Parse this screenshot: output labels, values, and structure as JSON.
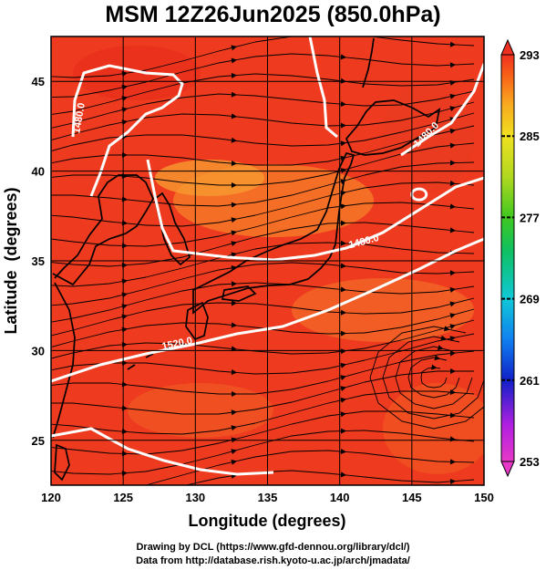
{
  "title": "MSM 12Z26Jun2025 (850.0hPa)",
  "x_axis": {
    "label": "Longitude (degrees)",
    "range": [
      120,
      150
    ],
    "ticks": [
      "120",
      "125",
      "130",
      "135",
      "140",
      "145",
      "150"
    ]
  },
  "y_axis": {
    "label": "Latitude  (degrees)",
    "range": [
      22.5,
      47.5
    ],
    "ticks": [
      "25",
      "30",
      "35",
      "40",
      "45"
    ]
  },
  "colorbar": {
    "range": [
      253,
      293
    ],
    "ticks": [
      "293",
      "285",
      "277",
      "269",
      "261",
      "253"
    ],
    "colors": [
      "#e838c8",
      "#b020e0",
      "#1020c8",
      "#1080f0",
      "#10c8d8",
      "#10c060",
      "#40c820",
      "#b0d820",
      "#f0e020",
      "#f8a820",
      "#f86018",
      "#f03020"
    ]
  },
  "contours": [
    {
      "label": "1480.0"
    },
    {
      "label": "1480.0"
    },
    {
      "label": "1480.0"
    },
    {
      "label": "1520.0"
    }
  ],
  "footer": {
    "line1": "Drawing by DCL (https://www.gfd-dennou.org/library/dcl/)",
    "line2": "Data from http://database.rish.kyoto-u.ac.jp/arch/jmadata/"
  }
}
